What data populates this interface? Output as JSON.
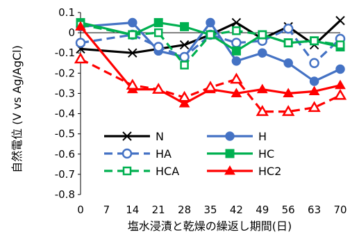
{
  "chart_data": {
    "type": "line",
    "title": "",
    "xlabel": "塩水浸漬と乾燥の繰返し期間(日)",
    "ylabel": "自然電位 (V vs Ag/AgCl)",
    "x": [
      0,
      14,
      21,
      28,
      35,
      42,
      49,
      56,
      63,
      70
    ],
    "x_ticks": [
      0,
      7,
      14,
      21,
      28,
      35,
      42,
      49,
      56,
      63,
      70
    ],
    "y_ticks": [
      0.1,
      0,
      -0.1,
      -0.2,
      -0.3,
      -0.4,
      -0.5,
      -0.6,
      -0.7,
      -0.8
    ],
    "y_tick_labels": [
      "0.1",
      "0",
      "-0.1",
      "-0.2",
      "-0.3",
      "-0.4",
      "-0.5",
      "-0.6",
      "-0.7",
      "-0.8"
    ],
    "xlim": [
      0,
      70
    ],
    "ylim": [
      -0.8,
      0.1
    ],
    "grid": false,
    "legend_position": "bottom-center",
    "series": [
      {
        "name": "N",
        "color": "#000000",
        "marker": "x",
        "dashed": false,
        "values": [
          -0.08,
          -0.1,
          -0.08,
          -0.06,
          -0.01,
          0.05,
          -0.03,
          0.03,
          -0.06,
          0.06
        ]
      },
      {
        "name": "H",
        "color": "#4472C4",
        "marker": "circle-filled",
        "dashed": false,
        "values": [
          0.03,
          0.05,
          -0.09,
          -0.12,
          0.05,
          -0.14,
          -0.1,
          -0.15,
          -0.24,
          -0.18
        ]
      },
      {
        "name": "HA",
        "color": "#4472C4",
        "marker": "circle-open",
        "dashed": true,
        "values": [
          -0.05,
          -0.01,
          -0.07,
          -0.12,
          -0.01,
          -0.05,
          -0.04,
          0.02,
          -0.15,
          -0.03
        ]
      },
      {
        "name": "HC",
        "color": "#00B050",
        "marker": "square-filled",
        "dashed": false,
        "values": [
          0.05,
          -0.01,
          0.05,
          0.03,
          -0.01,
          -0.09,
          -0.01,
          -0.05,
          -0.04,
          -0.07
        ]
      },
      {
        "name": "HCA",
        "color": "#00B050",
        "marker": "square-open",
        "dashed": true,
        "values": [
          0.04,
          -0.01,
          0.0,
          -0.16,
          -0.01,
          0.01,
          -0.01,
          -0.05,
          -0.04,
          -0.06
        ]
      },
      {
        "name": "HC2",
        "color": "#FF0000",
        "marker": "triangle",
        "dashed": false,
        "values": [
          0.03,
          -0.28,
          -0.28,
          -0.35,
          -0.28,
          -0.3,
          -0.28,
          -0.3,
          -0.29,
          -0.26
        ]
      },
      {
        "name": "",
        "color": "#FF0000",
        "marker": "triangle-open",
        "dashed": true,
        "values": [
          -0.13,
          -0.26,
          -0.28,
          -0.32,
          -0.27,
          -0.23,
          -0.39,
          -0.39,
          -0.37,
          -0.31
        ]
      }
    ]
  }
}
